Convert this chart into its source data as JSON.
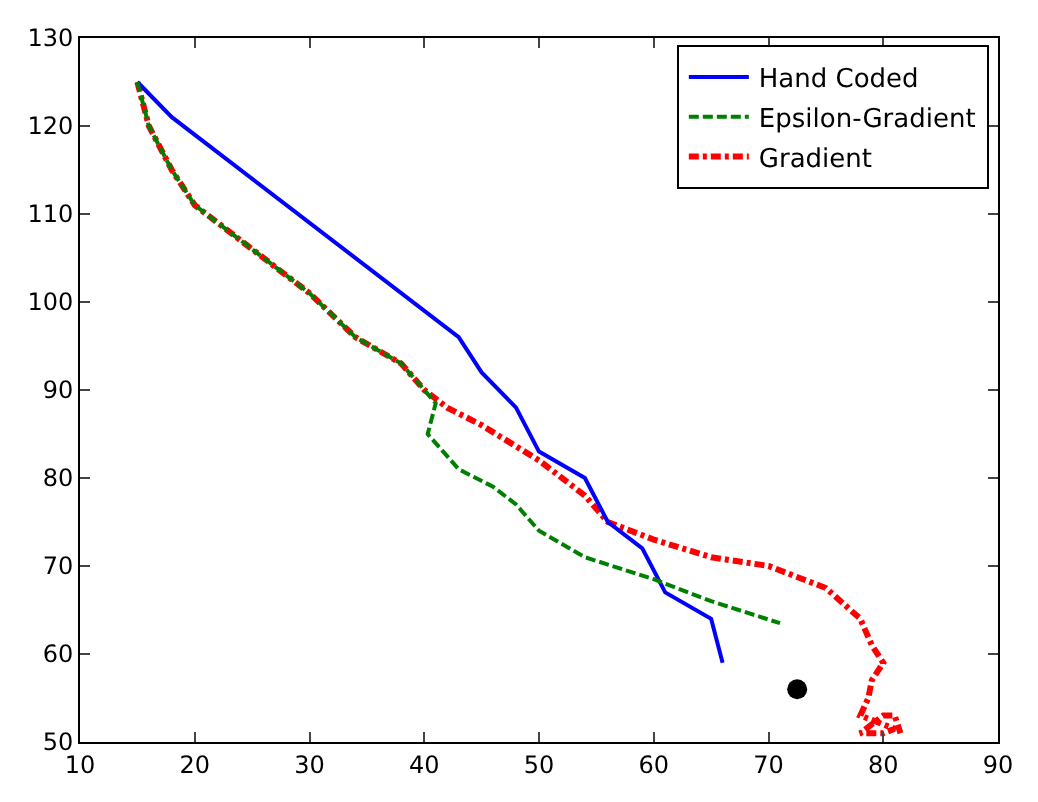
{
  "chart_data": {
    "type": "line",
    "xlim": [
      10,
      90
    ],
    "ylim": [
      50,
      130
    ],
    "xticks": [
      10,
      20,
      30,
      40,
      50,
      60,
      70,
      80,
      90
    ],
    "yticks": [
      50,
      60,
      70,
      80,
      90,
      100,
      110,
      120,
      130
    ],
    "legend": "top right",
    "series": [
      {
        "name": "Hand Coded",
        "color": "#0000ff",
        "line_style": "solid",
        "x": [
          15,
          18,
          43,
          45,
          48,
          50,
          54,
          56,
          59,
          61,
          65,
          66
        ],
        "values": [
          125,
          121,
          96,
          92,
          88,
          83,
          80,
          75,
          72,
          67,
          64,
          59
        ]
      },
      {
        "name": "Epsilon-Gradient",
        "color": "#008000",
        "line_style": "dashed",
        "x": [
          15,
          16,
          18,
          20,
          25,
          30,
          34,
          38,
          40,
          41,
          40.3,
          43,
          46,
          48,
          50,
          54,
          60,
          65,
          71
        ],
        "values": [
          125,
          120,
          115,
          111,
          106,
          101,
          96,
          93,
          90,
          88.5,
          85,
          81,
          79,
          77,
          74,
          71,
          68.5,
          66,
          63.5
        ]
      },
      {
        "name": "Gradient",
        "color": "#ff0000",
        "line_style": "dashdot",
        "x": [
          15,
          16,
          18,
          20,
          25,
          30,
          34,
          38,
          40,
          42,
          45,
          50,
          54,
          56,
          60,
          65,
          70,
          75,
          78,
          79,
          80,
          79,
          78.7,
          78,
          80,
          81,
          80,
          78,
          80,
          81,
          81.5
        ],
        "values": [
          125,
          120,
          115,
          111,
          106,
          101,
          96,
          93,
          90,
          88,
          86,
          82,
          78,
          75,
          73,
          71,
          70,
          67.5,
          64,
          61,
          59,
          57,
          55,
          53,
          52,
          51.5,
          51,
          51,
          53,
          53,
          51
        ]
      },
      {
        "type": "scatter",
        "color": "#000000",
        "marker": "circle",
        "x": [
          72.5
        ],
        "values": [
          56
        ]
      }
    ]
  }
}
